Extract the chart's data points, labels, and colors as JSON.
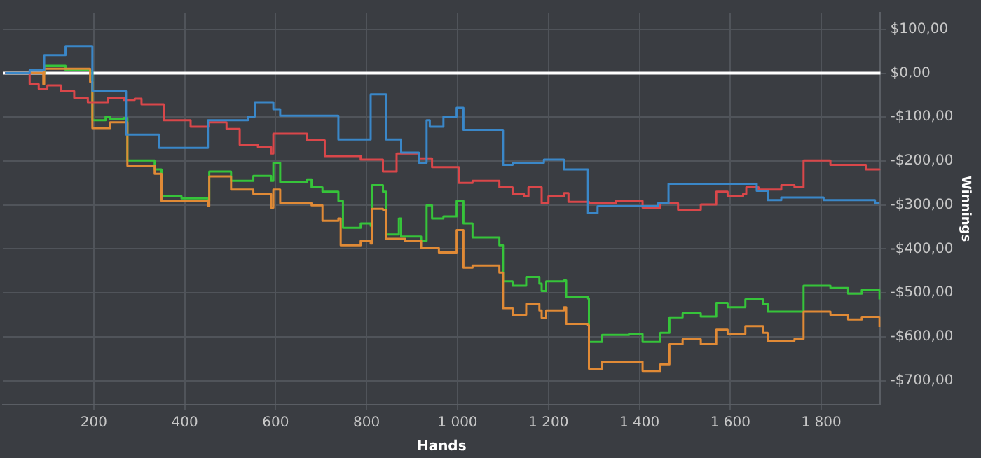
{
  "chart_data": {
    "type": "step",
    "xlabel": "Hands",
    "ylabel": "Winnings",
    "xlim": [
      0,
      1930
    ],
    "ylim": [
      -755,
      138
    ],
    "xticks": [
      200,
      400,
      600,
      800,
      {
        "value": 1000,
        "label": "1 000"
      },
      {
        "value": 1200,
        "label": "1 200"
      },
      {
        "value": 1400,
        "label": "1 400"
      },
      {
        "value": 1600,
        "label": "1 600"
      },
      {
        "value": 1800,
        "label": "1 800"
      }
    ],
    "yticks": [
      {
        "value": -700,
        "label": "-$700,00"
      },
      {
        "value": -600,
        "label": "-$600,00"
      },
      {
        "value": -500,
        "label": "-$500,00"
      },
      {
        "value": -400,
        "label": "-$400,00"
      },
      {
        "value": -300,
        "label": "-$300,00"
      },
      {
        "value": -200,
        "label": "-$200,00"
      },
      {
        "value": -100,
        "label": "-$100,00"
      },
      {
        "value": 0,
        "label": "$0,00"
      },
      {
        "value": 100,
        "label": "$100,00"
      }
    ],
    "grid": true,
    "legend": false,
    "marker": "none",
    "line_style": "solid",
    "ref_lines": [
      {
        "axis": "y",
        "value": 0,
        "color": "#ffffff"
      }
    ],
    "series": [
      {
        "color": "#3a87c8",
        "x": [
          5,
          59,
          91,
          138,
          197,
          271,
          344,
          451,
          539,
          554,
          595,
          610,
          738,
          809,
          843,
          876,
          915,
          932,
          939,
          969,
          998,
          1013,
          1100,
          1121,
          1190,
          1234,
          1287,
          1308,
          1441,
          1464,
          1658,
          1682,
          1712,
          1805,
          1918,
          1928
        ],
        "values": [
          0,
          7,
          41,
          62,
          -41,
          -140,
          -170,
          -107,
          -99,
          -66,
          -82,
          -97,
          -151,
          -48,
          -151,
          -181,
          -204,
          -107,
          -122,
          -99,
          -79,
          -129,
          -209,
          -204,
          -197,
          -219,
          -319,
          -303,
          -296,
          -252,
          -268,
          -289,
          -283,
          -289,
          -296,
          -296
        ]
      },
      {
        "color": "#d9474a",
        "x": [
          5,
          59,
          79,
          98,
          128,
          157,
          187,
          231,
          266,
          290,
          305,
          354,
          413,
          452,
          492,
          521,
          561,
          590,
          595,
          669,
          708,
          787,
          836,
          866,
          915,
          944,
          994,
          1003,
          1033,
          1092,
          1121,
          1146,
          1156,
          1185,
          1200,
          1234,
          1244,
          1289,
          1348,
          1407,
          1446,
          1485,
          1535,
          1569,
          1594,
          1628,
          1635,
          1662,
          1712,
          1741,
          1761,
          1780,
          1820,
          1869,
          1898,
          1928
        ],
        "values": [
          0,
          -25,
          -36,
          -28,
          -41,
          -56,
          -66,
          -56,
          -61,
          -58,
          -71,
          -107,
          -122,
          -112,
          -127,
          -163,
          -168,
          -183,
          -138,
          -153,
          -189,
          -197,
          -224,
          -183,
          -194,
          -214,
          -214,
          -250,
          -245,
          -260,
          -275,
          -280,
          -260,
          -296,
          -280,
          -273,
          -293,
          -296,
          -291,
          -306,
          -296,
          -311,
          -299,
          -270,
          -280,
          -275,
          -260,
          -265,
          -255,
          -260,
          -199,
          -199,
          -209,
          -209,
          -219,
          -221
        ]
      },
      {
        "color": "#e08a36",
        "x": [
          5,
          89,
          91,
          192,
          197,
          236,
          274,
          334,
          349,
          451,
          454,
          502,
          551,
          590,
          595,
          610,
          679,
          703,
          738,
          743,
          787,
          809,
          812,
          836,
          843,
          885,
          920,
          959,
          998,
          1013,
          1033,
          1092,
          1100,
          1121,
          1151,
          1180,
          1185,
          1195,
          1234,
          1239,
          1287,
          1289,
          1318,
          1377,
          1407,
          1446,
          1466,
          1495,
          1535,
          1569,
          1594,
          1633,
          1672,
          1682,
          1741,
          1761,
          1820,
          1859,
          1889,
          1928
        ],
        "values": [
          0,
          -25,
          10,
          -20,
          -125,
          -112,
          -211,
          -229,
          -291,
          -303,
          -235,
          -265,
          -275,
          -306,
          -265,
          -296,
          -301,
          -336,
          -331,
          -392,
          -382,
          -388,
          -309,
          -311,
          -377,
          -382,
          -398,
          -408,
          -357,
          -443,
          -438,
          -454,
          -535,
          -550,
          -525,
          -540,
          -557,
          -540,
          -533,
          -571,
          -574,
          -673,
          -657,
          -657,
          -678,
          -663,
          -617,
          -606,
          -617,
          -584,
          -594,
          -576,
          -591,
          -609,
          -605,
          -543,
          -550,
          -561,
          -555,
          -578
        ]
      },
      {
        "color": "#36c43a",
        "x": [
          5,
          91,
          138,
          192,
          197,
          226,
          236,
          266,
          274,
          334,
          349,
          393,
          451,
          454,
          502,
          551,
          590,
          595,
          610,
          669,
          679,
          703,
          738,
          748,
          787,
          809,
          812,
          836,
          843,
          871,
          876,
          920,
          932,
          944,
          969,
          998,
          1013,
          1033,
          1092,
          1100,
          1121,
          1151,
          1180,
          1185,
          1195,
          1234,
          1239,
          1287,
          1289,
          1318,
          1377,
          1407,
          1446,
          1466,
          1495,
          1535,
          1569,
          1594,
          1633,
          1672,
          1682,
          1741,
          1761,
          1820,
          1859,
          1889,
          1928
        ],
        "values": [
          0,
          17,
          7,
          5,
          -107,
          -99,
          -104,
          -102,
          -199,
          -219,
          -280,
          -285,
          -291,
          -224,
          -245,
          -234,
          -245,
          -204,
          -248,
          -242,
          -260,
          -270,
          -291,
          -352,
          -342,
          -347,
          -255,
          -270,
          -367,
          -331,
          -372,
          -382,
          -301,
          -331,
          -326,
          -291,
          -342,
          -374,
          -392,
          -474,
          -484,
          -464,
          -479,
          -496,
          -474,
          -472,
          -510,
          -513,
          -612,
          -596,
          -594,
          -612,
          -591,
          -556,
          -547,
          -554,
          -523,
          -533,
          -515,
          -525,
          -543,
          -543,
          -484,
          -489,
          -502,
          -494,
          -515
        ]
      }
    ]
  }
}
